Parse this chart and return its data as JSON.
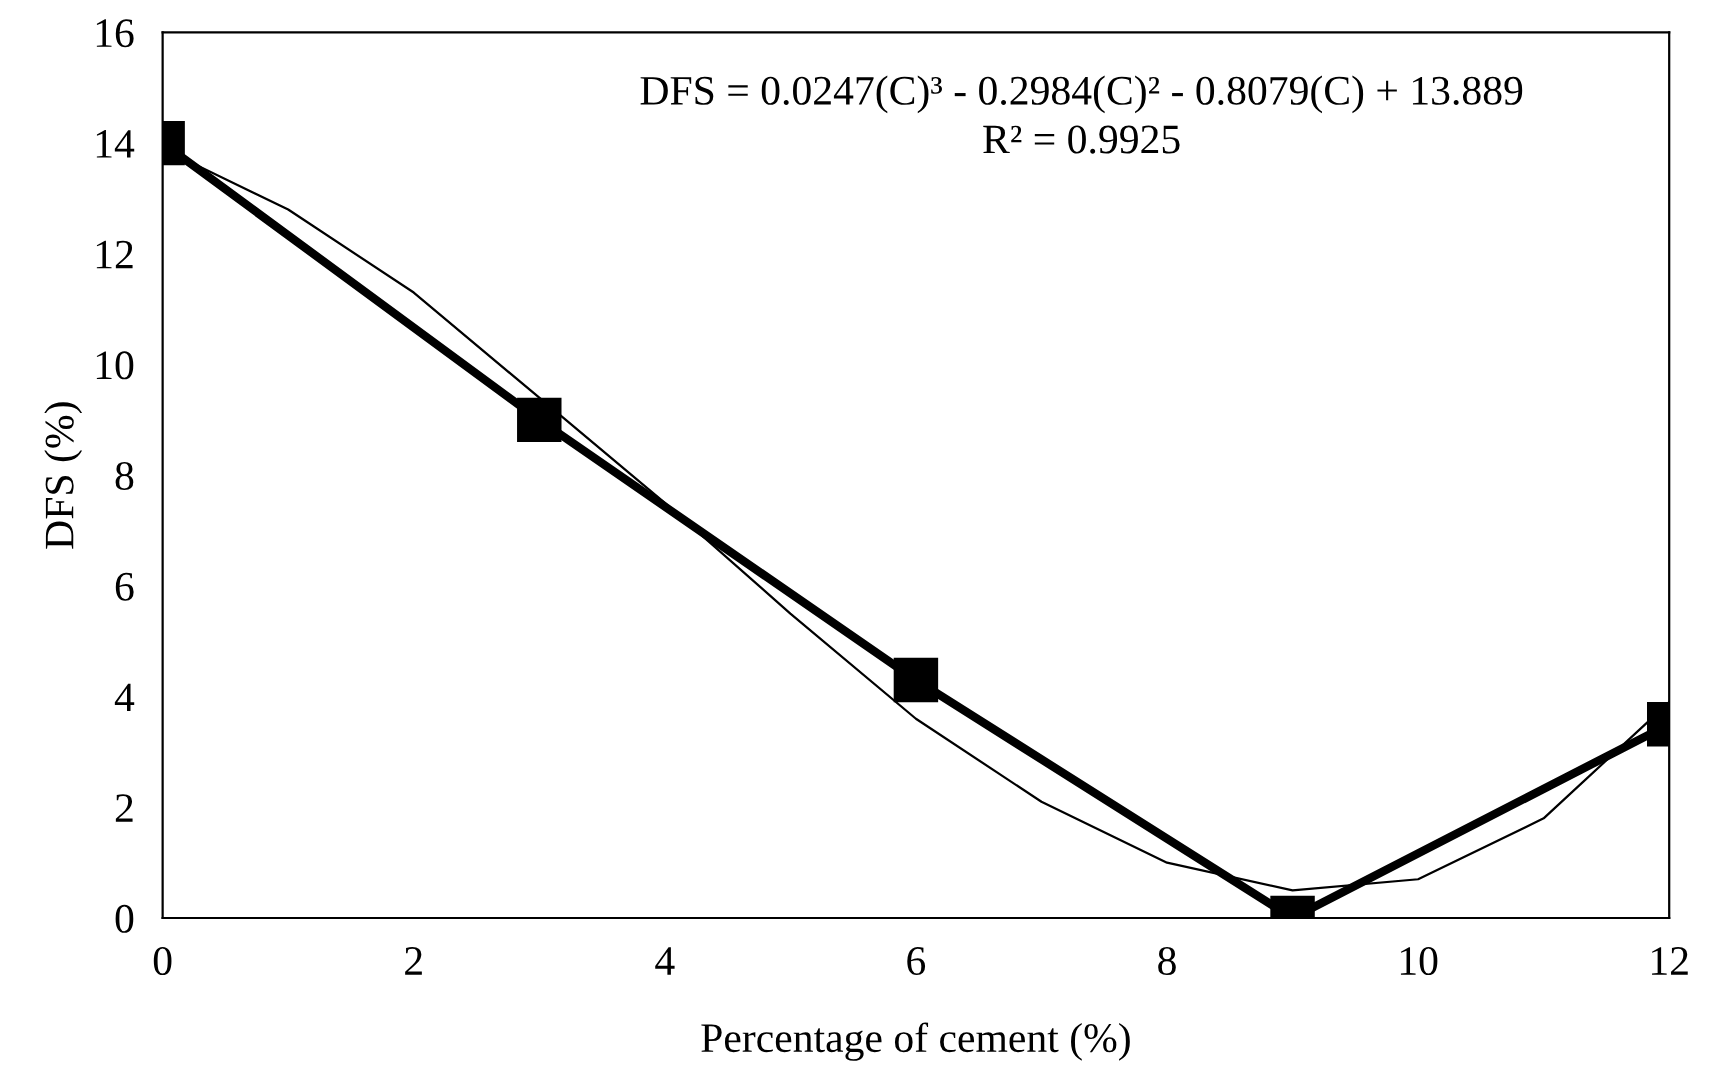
{
  "chart_data": {
    "type": "line",
    "xlabel": "Percentage of cement (%)",
    "ylabel": "DFS (%)",
    "x": [
      0,
      3,
      6,
      9,
      12
    ],
    "series": [
      {
        "color": "#000000",
        "values": [
          14,
          9,
          4.3,
          0,
          3.5
        ],
        "marker": "square",
        "line_style": "solid"
      },
      {
        "type": "line",
        "color": "#000000",
        "x": [
          0,
          1,
          2,
          3,
          4,
          5,
          6,
          7,
          8,
          9,
          10,
          11,
          12
        ],
        "values": [
          13.9,
          12.8,
          11.3,
          9.4,
          7.5,
          5.5,
          3.6,
          2.1,
          1.0,
          0.5,
          0.7,
          1.8,
          3.9
        ],
        "marker": "none",
        "line_style": "solid"
      }
    ],
    "annotations": [
      "DFS = 0.0247(C)³ - 0.2984(C)² - 0.8079(C) + 13.889",
      "R² = 0.9925"
    ],
    "xlim": [
      0,
      12
    ],
    "ylim": [
      0,
      16
    ],
    "xticks": [
      0,
      2,
      4,
      6,
      8,
      10,
      12
    ],
    "yticks": [
      0,
      2,
      4,
      6,
      8,
      10,
      12,
      14,
      16
    ],
    "grid": false,
    "legend": false
  }
}
